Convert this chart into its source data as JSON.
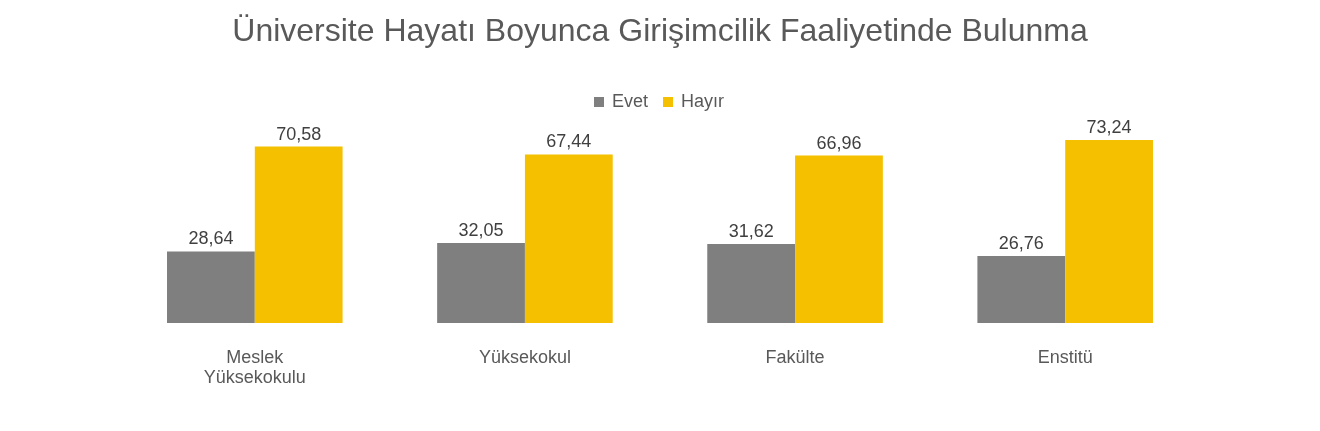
{
  "chart_data": {
    "type": "bar",
    "title": "Üniversite Hayatı Boyunca Girişimcilik Faaliyetinde Bulunma",
    "categories": [
      "Meslek Yüksekokulu",
      "Yüksekokul",
      "Fakülte",
      "Enstitü"
    ],
    "series": [
      {
        "name": "Evet",
        "color": "#7f7f7f",
        "values": [
          28.64,
          32.05,
          31.62,
          26.76
        ],
        "value_labels": [
          "28,64",
          "32,05",
          "31,62",
          "26,76"
        ]
      },
      {
        "name": "Hayır",
        "color": "#f5c000",
        "values": [
          70.58,
          67.44,
          66.96,
          73.24
        ],
        "value_labels": [
          "70,58",
          "67,44",
          "66,96",
          "73,24"
        ]
      }
    ],
    "legend": "top"
  }
}
